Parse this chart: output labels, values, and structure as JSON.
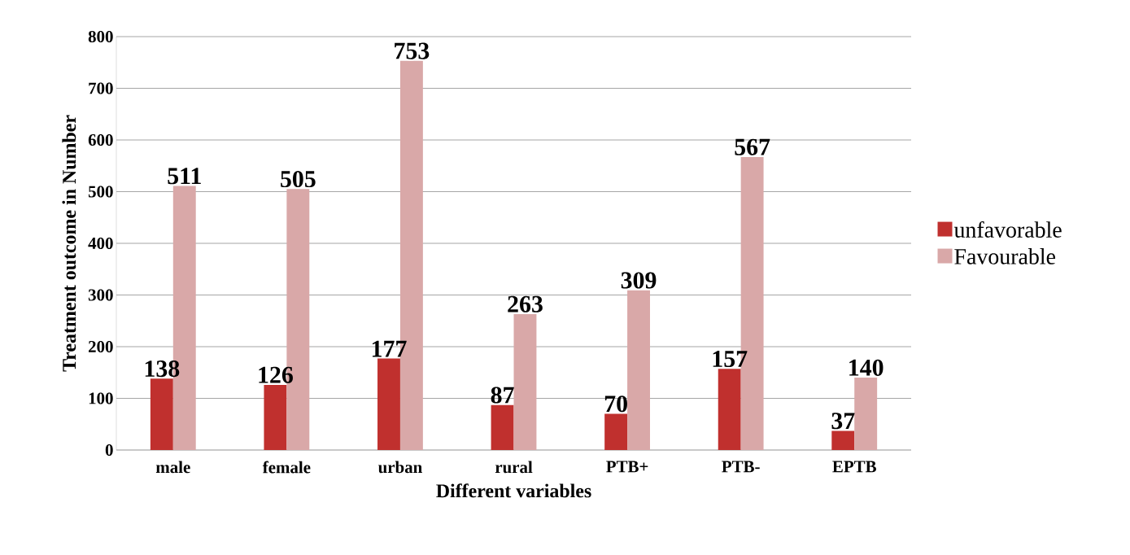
{
  "chart_data": {
    "type": "bar",
    "xlabel": "Different variables",
    "ylabel": "Treatment outcome in Number",
    "categories": [
      "male",
      "female",
      "urban",
      "rural",
      "PTB+",
      "PTB-",
      "EPTB"
    ],
    "series": [
      {
        "name": "unfavorable",
        "color": "#c0302e",
        "values": [
          138,
          126,
          177,
          87,
          70,
          157,
          37
        ]
      },
      {
        "name": "Favourable",
        "color": "#d9a8a8",
        "values": [
          511,
          505,
          753,
          263,
          309,
          567,
          140
        ]
      }
    ],
    "ylim": [
      0,
      800
    ],
    "yticks": [
      0,
      100,
      200,
      300,
      400,
      500,
      600,
      700,
      800
    ],
    "grid": "y",
    "legend": "right",
    "data_labels": true
  }
}
